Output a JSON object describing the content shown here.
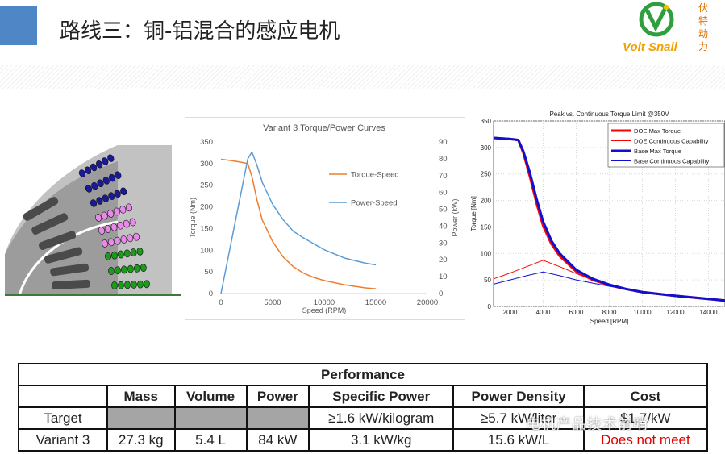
{
  "slide": {
    "title": "路线三：铜-铝混合的感应电机",
    "logo": {
      "brand": "Volt Snail",
      "tagline_chars": [
        "伏",
        "特",
        "动",
        "力"
      ]
    }
  },
  "colors": {
    "accent": "#4f86c6",
    "torque_orange": "#ed7d31",
    "power_blue": "#5b9bd5",
    "doe_red": "#ff0000",
    "base_blue": "#1010d0",
    "fail_red": "#e00000"
  },
  "watermark": "电机产品技术前哨",
  "motor_figure": {
    "icon": "motor-cross-section"
  },
  "chart_data": [
    {
      "type": "line",
      "title": "Variant 3 Torque/Power Curves",
      "xlabel": "Speed (RPM)",
      "ylabel": "Torque (Nm)",
      "y2label": "Power (kW)",
      "xlim": [
        0,
        20000
      ],
      "ylim": [
        0,
        350
      ],
      "y2lim": [
        0,
        90
      ],
      "xticks": [
        "0",
        "5000",
        "10000",
        "15000",
        "20000"
      ],
      "yticks": [
        "0",
        "50",
        "100",
        "150",
        "200",
        "250",
        "300",
        "350"
      ],
      "y2ticks": [
        "0",
        "10",
        "20",
        "30",
        "40",
        "50",
        "60",
        "70",
        "80",
        "90"
      ],
      "series": [
        {
          "name": "Torque-Speed",
          "axis": "left",
          "color": "#ed7d31",
          "x": [
            0,
            1000,
            2000,
            2600,
            3000,
            3500,
            4000,
            5000,
            6000,
            7000,
            8000,
            9000,
            10000,
            12000,
            14000,
            15000
          ],
          "y": [
            310,
            307,
            303,
            300,
            270,
            215,
            170,
            120,
            85,
            62,
            47,
            37,
            30,
            20,
            13,
            11
          ]
        },
        {
          "name": "Power-Speed",
          "axis": "right",
          "color": "#5b9bd5",
          "x": [
            0,
            2600,
            3000,
            3500,
            4000,
            5000,
            6000,
            7000,
            8000,
            10000,
            12000,
            14000,
            15000
          ],
          "y": [
            0,
            80,
            84,
            76,
            66,
            53,
            44,
            37,
            33,
            26,
            21,
            18,
            17
          ]
        }
      ],
      "legend": "right"
    },
    {
      "type": "line",
      "title": "Peak vs. Continuous Torque Limit @350V",
      "xlabel": "Speed [RPM]",
      "ylabel": "Torque [Nm]",
      "xlim": [
        1000,
        15000
      ],
      "ylim": [
        0,
        350
      ],
      "xticks": [
        "2000",
        "4000",
        "6000",
        "8000",
        "10000",
        "12000",
        "14000"
      ],
      "yticks": [
        "0",
        "50",
        "100",
        "150",
        "200",
        "250",
        "300",
        "350"
      ],
      "grid": true,
      "legend": "top-right",
      "series": [
        {
          "name": "DOE Max Torque",
          "color": "#ff0000",
          "width": 3,
          "x": [
            1000,
            2000,
            2500,
            2800,
            3200,
            3600,
            4000,
            4500,
            5000,
            6000,
            7000,
            8000,
            9000,
            10000,
            12000,
            14000,
            15000
          ],
          "y": [
            318,
            316,
            314,
            290,
            245,
            195,
            152,
            118,
            95,
            66,
            50,
            40,
            33,
            27,
            20,
            14,
            11
          ]
        },
        {
          "name": "DOE Continuous Capability",
          "color": "#ff0000",
          "width": 1,
          "x": [
            1000,
            2000,
            3000,
            4000,
            5000,
            6000,
            7000,
            8000,
            9000,
            10000,
            12000,
            14000,
            15000
          ],
          "y": [
            52,
            63,
            75,
            87,
            75,
            62,
            50,
            40,
            33,
            27,
            20,
            14,
            11
          ]
        },
        {
          "name": "Base Max Torque",
          "color": "#1010d0",
          "width": 3,
          "x": [
            1000,
            2000,
            2500,
            2800,
            3200,
            3600,
            4000,
            4500,
            5000,
            6000,
            7000,
            8000,
            9000,
            10000,
            12000,
            14000,
            15000
          ],
          "y": [
            318,
            316,
            314,
            293,
            252,
            203,
            160,
            124,
            100,
            69,
            52,
            41,
            33,
            27,
            20,
            14,
            11
          ]
        },
        {
          "name": "Base Continuous Capability",
          "color": "#1010d0",
          "width": 1,
          "x": [
            1000,
            2000,
            3000,
            4000,
            5000,
            6000,
            7000,
            8000,
            9000,
            10000,
            12000,
            14000,
            15000
          ],
          "y": [
            42,
            50,
            58,
            65,
            58,
            50,
            44,
            38,
            33,
            27,
            20,
            14,
            11
          ]
        }
      ]
    },
    {
      "type": "table",
      "title": "Performance",
      "columns": [
        "",
        "Mass",
        "Volume",
        "Power",
        "Specific Power",
        "Power Density",
        "Cost"
      ],
      "rows": [
        [
          "Target",
          "",
          "",
          "",
          "≥1.6 kW/kilogram",
          "≥5.7 kW/liter",
          "$1.7/kW"
        ],
        [
          "Variant 3",
          "27.3 kg",
          "5.4 L",
          "84 kW",
          "3.1 kW/kg",
          "15.6 kW/L",
          "Does not meet"
        ]
      ]
    }
  ]
}
